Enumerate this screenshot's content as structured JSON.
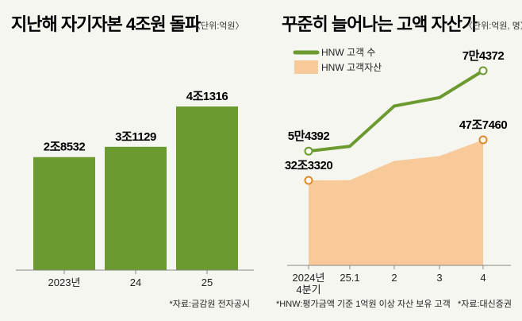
{
  "colors": {
    "bar": "#6b9a2f",
    "line": "#6b9a2f",
    "area": "#f8c999",
    "area_marker": "#d98a2b",
    "background": "#f6f6f1"
  },
  "chart_data": [
    {
      "type": "bar",
      "title": "지난해 자기자본 4조원 돌파",
      "unit": "〈단위:억원〉",
      "categories": [
        "2023년",
        "24",
        "25"
      ],
      "values": [
        28532,
        31129,
        41316
      ],
      "value_labels": [
        "2조8532",
        "3조1129",
        "4조1316"
      ],
      "ylim": [
        0,
        41316
      ],
      "grid": false,
      "note": "*자료:금감원 전자공시"
    },
    {
      "type": "line",
      "title": "꾸준히 늘어나는 고액 자산가",
      "unit": "〈단위:억원, 명〉",
      "categories": [
        "2024년|4분기",
        "25.1",
        "2",
        "3",
        "4"
      ],
      "legend_position": "top-left",
      "series": [
        {
          "name": "HNW 고객 수",
          "kind": "line",
          "values": [
            54392,
            55600,
            65600,
            67700,
            74372
          ],
          "labels": {
            "0": "5만4392",
            "4": "7만4372"
          },
          "ylim": [
            26000,
            80000
          ]
        },
        {
          "name": "HNW 고객자산",
          "kind": "area",
          "values": [
            323320,
            324000,
            397300,
            415800,
            477460
          ],
          "labels": {
            "0": "32조3320",
            "4": "47조7460"
          },
          "ylim": [
            0,
            477460
          ]
        }
      ],
      "grid": false,
      "notes": [
        "*HNW:평가금액 기준 1억원 이상 자산 보유 고객",
        "*자료:대신증권"
      ]
    }
  ]
}
